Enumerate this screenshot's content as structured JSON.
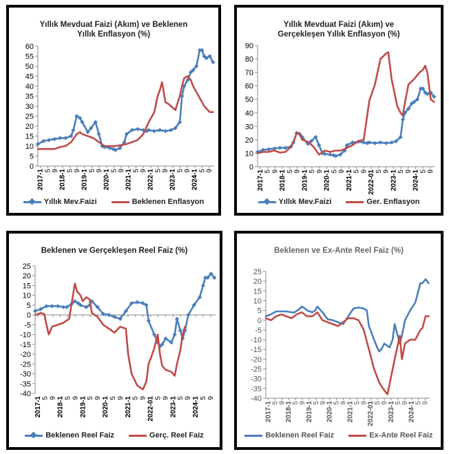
{
  "chart_data": [
    {
      "type": "line",
      "title": "Yıllık Mevduat Faizi (Akım) ve Beklenen Yıllık Enflasyon (%)",
      "title_lines": [
        "Yıllık Mevduat Faizi (Akım) ve Beklenen",
        "Yıllık Enflasyon (%)"
      ],
      "ylim": [
        0,
        60
      ],
      "yticks": [
        0,
        5,
        10,
        15,
        20,
        25,
        30,
        35,
        40,
        45,
        50,
        55,
        60
      ],
      "xlim": [
        2017.0,
        2024.95
      ],
      "x_labels": [
        "2017-1",
        "5",
        "9",
        "2018-1",
        "5",
        "9",
        "2019-1",
        "5",
        "9",
        "2020-1",
        "5",
        "9",
        "2021-1",
        "5",
        "9",
        "2022-1",
        "5",
        "9",
        "2023-1",
        "5",
        "9",
        "2024-1",
        "5",
        "9"
      ],
      "series": [
        {
          "name": "Yıllık Mev.Faizi",
          "color": "#4a7ebb",
          "markers": true,
          "x": [
            2017.0,
            2017.25,
            2017.5,
            2017.75,
            2018.0,
            2018.25,
            2018.5,
            2018.6,
            2018.75,
            2018.9,
            2019.0,
            2019.25,
            2019.4,
            2019.6,
            2019.75,
            2019.9,
            2020.0,
            2020.25,
            2020.4,
            2020.5,
            2020.7,
            2020.9,
            2021.0,
            2021.25,
            2021.5,
            2021.75,
            2021.9,
            2022.0,
            2022.25,
            2022.5,
            2022.75,
            2023.0,
            2023.2,
            2023.4,
            2023.5,
            2023.6,
            2023.75,
            2023.9,
            2024.0,
            2024.15,
            2024.3,
            2024.4,
            2024.5,
            2024.6,
            2024.75,
            2024.9
          ],
          "y": [
            11,
            12.5,
            13,
            13.5,
            14,
            14,
            15,
            18,
            25,
            24,
            22,
            17,
            19,
            22,
            16,
            10,
            9.5,
            9,
            8.5,
            8,
            9,
            12,
            16,
            18,
            18.5,
            18,
            17.5,
            18,
            17.5,
            18,
            17.5,
            18,
            19,
            22,
            35,
            40,
            43,
            47,
            48,
            50,
            58,
            58,
            55,
            54,
            55,
            52
          ]
        },
        {
          "name": "Beklenen Enflasyon",
          "color": "#be4b48",
          "markers": false,
          "x": [
            2017.0,
            2017.25,
            2017.5,
            2017.75,
            2018.0,
            2018.25,
            2018.5,
            2018.75,
            2018.9,
            2019.0,
            2019.25,
            2019.5,
            2019.75,
            2020.0,
            2020.25,
            2020.5,
            2020.75,
            2021.0,
            2021.25,
            2021.5,
            2021.75,
            2022.0,
            2022.25,
            2022.4,
            2022.5,
            2022.6,
            2022.75,
            2022.9,
            2023.0,
            2023.2,
            2023.4,
            2023.5,
            2023.6,
            2023.75,
            2023.9,
            2024.0,
            2024.25,
            2024.5,
            2024.75,
            2024.9
          ],
          "y": [
            8.5,
            8.5,
            8.5,
            8.5,
            9.5,
            10,
            12,
            16,
            17,
            16,
            15,
            14,
            12,
            10,
            10,
            10,
            10.5,
            11,
            12,
            13,
            16,
            22,
            27,
            35,
            38,
            42,
            32,
            31,
            30,
            28,
            35,
            40,
            44,
            45,
            43,
            40,
            35,
            30,
            27,
            27
          ]
        }
      ],
      "legend": "bottom"
    },
    {
      "type": "line",
      "title": "Yıllık Mevduat Faizi (Akım) ve Gerçekleşen Yıllık Enflasyon (%)",
      "title_lines": [
        "Yıllık Mevduat Faizi (Akım) ve",
        "Gerçekleşen Yıllık Enflasyon (%)"
      ],
      "ylim": [
        0,
        90
      ],
      "yticks": [
        0,
        10,
        20,
        30,
        40,
        50,
        60,
        70,
        80,
        90
      ],
      "xlim": [
        2017.0,
        2024.95
      ],
      "x_labels": [
        "2017-1",
        "5",
        "9",
        "2018-1",
        "5",
        "9",
        "2019-1",
        "5",
        "9",
        "2020-1",
        "5",
        "9",
        "2021-1",
        "5",
        "9",
        "2022-01",
        "5",
        "9",
        "2023-1",
        "5",
        "9",
        "2024-1",
        "5",
        "9"
      ],
      "series": [
        {
          "name": "Yıllık Mev.Faizi",
          "color": "#4a7ebb",
          "markers": true,
          "x": [
            2017.0,
            2017.25,
            2017.5,
            2017.75,
            2018.0,
            2018.25,
            2018.5,
            2018.6,
            2018.75,
            2018.9,
            2019.0,
            2019.25,
            2019.4,
            2019.6,
            2019.75,
            2019.9,
            2020.0,
            2020.25,
            2020.4,
            2020.5,
            2020.7,
            2020.9,
            2021.0,
            2021.25,
            2021.5,
            2021.75,
            2021.9,
            2022.0,
            2022.25,
            2022.5,
            2022.75,
            2023.0,
            2023.2,
            2023.4,
            2023.5,
            2023.6,
            2023.75,
            2023.9,
            2024.0,
            2024.15,
            2024.3,
            2024.4,
            2024.5,
            2024.6,
            2024.75,
            2024.9
          ],
          "y": [
            11,
            12.5,
            13,
            13.5,
            14,
            14,
            15,
            18,
            25,
            24,
            22,
            17,
            19,
            22,
            16,
            10,
            9.5,
            9,
            8.5,
            8,
            9,
            12,
            16,
            18,
            18.5,
            18,
            17.5,
            18,
            17.5,
            18,
            17.5,
            18,
            19,
            22,
            35,
            40,
            43,
            47,
            48,
            50,
            58,
            58,
            55,
            54,
            55,
            52
          ]
        },
        {
          "name": "Ger. Enflasyon",
          "color": "#be4b48",
          "markers": false,
          "x": [
            2017.0,
            2017.25,
            2017.5,
            2017.75,
            2018.0,
            2018.25,
            2018.5,
            2018.6,
            2018.75,
            2018.85,
            2019.0,
            2019.25,
            2019.5,
            2019.75,
            2020.0,
            2020.25,
            2020.5,
            2020.75,
            2021.0,
            2021.25,
            2021.5,
            2021.75,
            2022.0,
            2022.25,
            2022.5,
            2022.75,
            2022.85,
            2023.0,
            2023.25,
            2023.4,
            2023.5,
            2023.6,
            2023.75,
            2024.0,
            2024.25,
            2024.4,
            2024.5,
            2024.6,
            2024.75,
            2024.9
          ],
          "y": [
            10,
            11,
            11,
            12,
            10.5,
            11,
            15,
            18,
            25,
            25,
            20,
            18.5,
            15,
            9,
            12,
            11,
            12,
            12,
            14,
            16,
            19,
            20,
            49,
            61,
            80,
            84,
            85,
            65,
            45,
            40,
            38,
            48,
            61,
            65,
            70,
            72,
            75,
            70,
            50,
            48
          ]
        }
      ],
      "legend": "bottom"
    },
    {
      "type": "line",
      "title": "Beklenen ve Gerçekleşen Reel Faiz (%)",
      "ylim": [
        -40,
        25
      ],
      "yticks": [
        -40,
        -35,
        -30,
        -25,
        -20,
        -15,
        -10,
        -5,
        0,
        5,
        10,
        15,
        20,
        25
      ],
      "xlim": [
        2017.0,
        2024.95
      ],
      "x_labels": [
        "2017-1",
        "5",
        "9",
        "2018-1",
        "5",
        "9",
        "2019-1",
        "5",
        "9",
        "2020-1",
        "5",
        "9",
        "2021-1",
        "5",
        "9",
        "2022-01",
        "5",
        "9",
        "2023-1",
        "5",
        "9",
        "2024-1",
        "5",
        "9"
      ],
      "series": [
        {
          "name": "Beklenen Reel Faiz",
          "color": "#4a7ebb",
          "markers": true,
          "x": [
            2017.0,
            2017.25,
            2017.5,
            2017.75,
            2018.0,
            2018.25,
            2018.4,
            2018.6,
            2018.75,
            2018.9,
            2019.0,
            2019.25,
            2019.4,
            2019.5,
            2019.75,
            2020.0,
            2020.25,
            2020.5,
            2020.75,
            2021.0,
            2021.25,
            2021.5,
            2021.75,
            2021.9,
            2022.0,
            2022.25,
            2022.4,
            2022.5,
            2022.6,
            2022.75,
            2023.0,
            2023.15,
            2023.25,
            2023.4,
            2023.5,
            2023.6,
            2023.75,
            2024.0,
            2024.25,
            2024.4,
            2024.5,
            2024.6,
            2024.75,
            2024.9
          ],
          "y": [
            2,
            3,
            4.5,
            4.5,
            4.5,
            4,
            4,
            5.5,
            7,
            6,
            5,
            4,
            5,
            7,
            4,
            0.5,
            0,
            -1,
            -2,
            2,
            6,
            6.5,
            6,
            5,
            -3,
            -10,
            -14,
            -16,
            -15,
            -12,
            -14,
            -10,
            -2,
            -8,
            -12,
            -8,
            0,
            5,
            9,
            15,
            19,
            19,
            21,
            19
          ]
        },
        {
          "name": "Gerç. Reel Faiz",
          "color": "#be4b48",
          "markers": false,
          "x": [
            2017.0,
            2017.25,
            2017.4,
            2017.5,
            2017.6,
            2017.75,
            2018.0,
            2018.25,
            2018.5,
            2018.6,
            2018.75,
            2018.85,
            2019.0,
            2019.1,
            2019.25,
            2019.4,
            2019.5,
            2019.75,
            2020.0,
            2020.25,
            2020.5,
            2020.75,
            2021.0,
            2021.1,
            2021.25,
            2021.5,
            2021.75,
            2021.9,
            2022.0,
            2022.1,
            2022.25,
            2022.4,
            2022.5,
            2022.6,
            2022.75,
            2023.0,
            2023.15,
            2023.25,
            2023.4,
            2023.5,
            2023.6
          ],
          "y": [
            0,
            1,
            0.5,
            -5,
            -10,
            -6,
            -5,
            -4,
            -2,
            5,
            16,
            12,
            10,
            7,
            9,
            8,
            1,
            -1,
            -5,
            -7,
            -9,
            -6,
            -7,
            -20,
            -30,
            -36,
            -38,
            -34,
            -25,
            -22,
            -17,
            -10,
            -20,
            -26,
            -28,
            -29,
            -31,
            -25,
            -18,
            -10,
            -6
          ]
        }
      ],
      "legend": "bottom"
    },
    {
      "type": "line",
      "title": "Beklenen ve Ex-Ante Reel Faiz (%)",
      "ylim": [
        -40,
        25
      ],
      "yticks": [
        -40,
        -35,
        -30,
        -25,
        -20,
        -15,
        -10,
        -5,
        0,
        5,
        10,
        15,
        20,
        25
      ],
      "xlim": [
        2017.0,
        2024.95
      ],
      "x_labels": [
        "2017-1",
        "5",
        "9",
        "2018-1",
        "5",
        "9",
        "2019-1",
        "5",
        "9",
        "2020-1",
        "5",
        "9",
        "2021-1",
        "5",
        "9",
        "2022-01",
        "5",
        "9",
        "2023-1",
        "5",
        "9",
        "2024-1",
        "5",
        "9"
      ],
      "series": [
        {
          "name": "Beklenen Reel Faiz",
          "color": "#4a7ebb",
          "markers": false,
          "x": [
            2017.0,
            2017.25,
            2017.5,
            2017.75,
            2018.0,
            2018.25,
            2018.4,
            2018.6,
            2018.75,
            2018.9,
            2019.0,
            2019.25,
            2019.4,
            2019.5,
            2019.75,
            2020.0,
            2020.25,
            2020.5,
            2020.75,
            2021.0,
            2021.25,
            2021.5,
            2021.75,
            2021.9,
            2022.0,
            2022.25,
            2022.4,
            2022.5,
            2022.6,
            2022.75,
            2023.0,
            2023.15,
            2023.25,
            2023.4,
            2023.5,
            2023.6,
            2023.75,
            2024.0,
            2024.25,
            2024.4,
            2024.5,
            2024.6,
            2024.75,
            2024.9
          ],
          "y": [
            2,
            3,
            4.5,
            4.5,
            4.5,
            4,
            4,
            5.5,
            7,
            6,
            5,
            4,
            5,
            7,
            4,
            0.5,
            0,
            -1,
            -2,
            2,
            6,
            6.5,
            6,
            5,
            -3,
            -10,
            -14,
            -16,
            -15,
            -12,
            -14,
            -10,
            -2,
            -8,
            -12,
            -8,
            0,
            5,
            9,
            15,
            19,
            19,
            21,
            19
          ]
        },
        {
          "name": "Ex-Ante Reel Faiz",
          "color": "#be4b48",
          "markers": false,
          "x": [
            2017.0,
            2017.25,
            2017.5,
            2017.75,
            2018.0,
            2018.25,
            2018.5,
            2018.75,
            2019.0,
            2019.25,
            2019.5,
            2019.75,
            2020.0,
            2020.25,
            2020.5,
            2020.75,
            2021.0,
            2021.25,
            2021.5,
            2021.75,
            2022.0,
            2022.25,
            2022.5,
            2022.75,
            2022.9,
            2023.0,
            2023.25,
            2023.5,
            2023.6,
            2023.75,
            2024.0,
            2024.25,
            2024.5,
            2024.6,
            2024.75,
            2024.9
          ],
          "y": [
            1,
            0,
            2,
            3,
            2,
            1,
            3,
            4,
            2,
            2,
            4,
            0,
            -1,
            -2,
            -3,
            -1,
            1,
            1,
            0,
            -5,
            -15,
            -25,
            -32,
            -36,
            -38,
            -33,
            -20,
            -8,
            -20,
            -12,
            -10,
            -10,
            -5,
            -4,
            2,
            2
          ]
        }
      ],
      "legend": "bottom"
    }
  ]
}
